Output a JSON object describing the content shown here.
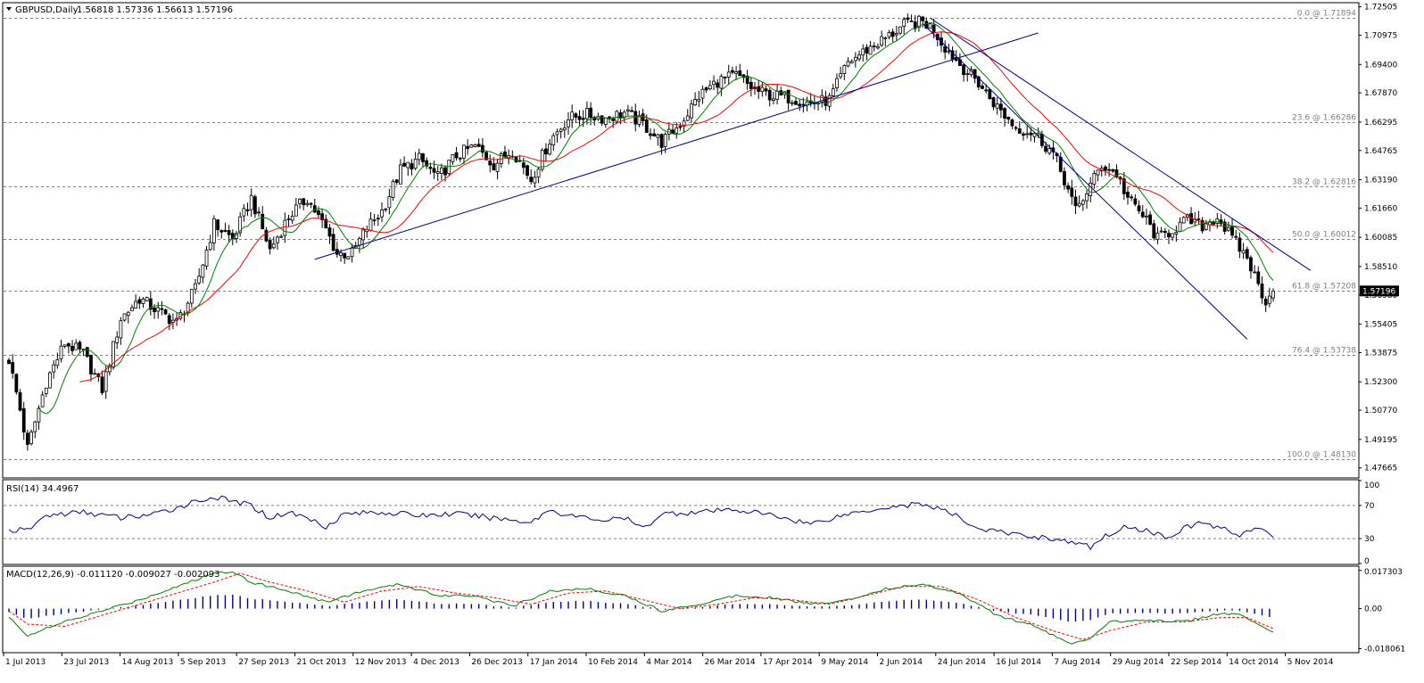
{
  "chart_data": {
    "type": "candlestick",
    "header": {
      "symbol_label": "GBPUSD,Daily",
      "ohlc_text": "1.56818 1.57336 1.56613 1.57196"
    },
    "current_price": "1.57196",
    "price_axis": {
      "ticks": [
        "1.72505",
        "1.70975",
        "1.69400",
        "1.67870",
        "1.66295",
        "1.64765",
        "1.63190",
        "1.61660",
        "1.60085",
        "1.58510",
        "1.56980",
        "1.55405",
        "1.53875",
        "1.52300",
        "1.50770",
        "1.49195",
        "1.47665"
      ],
      "ylim": [
        1.4717,
        1.7268
      ]
    },
    "x_axis": {
      "ticks": [
        "1 Jul 2013",
        "23 Jul 2013",
        "14 Aug 2013",
        "5 Sep 2013",
        "27 Sep 2013",
        "21 Oct 2013",
        "12 Nov 2013",
        "4 Dec 2013",
        "26 Dec 2013",
        "17 Jan 2014",
        "10 Feb 2014",
        "4 Mar 2014",
        "26 Mar 2014",
        "17 Apr 2014",
        "9 May 2014",
        "2 Jun 2014",
        "24 Jun 2014",
        "16 Jul 2014",
        "7 Aug 2014",
        "29 Aug 2014",
        "22 Sep 2014",
        "14 Oct 2014",
        "5 Nov 2014"
      ]
    },
    "fibonacci_levels": [
      {
        "label": "0.0 @ 1.71894",
        "value": 1.71894
      },
      {
        "label": "23.6 @ 1.66286",
        "value": 1.66286
      },
      {
        "label": "38.2 @ 1.62816",
        "value": 1.62816
      },
      {
        "label": "50.0 @ 1.60012",
        "value": 1.60012
      },
      {
        "label": "61.8 @ 1.57208",
        "value": 1.57208
      },
      {
        "label": "76.4 @ 1.53738",
        "value": 1.53738
      },
      {
        "label": "100.0 @ 1.48130",
        "value": 1.4813
      }
    ],
    "price_anchors": [
      [
        0,
        1.535
      ],
      [
        3,
        1.508
      ],
      [
        5,
        1.487
      ],
      [
        10,
        1.523
      ],
      [
        15,
        1.544
      ],
      [
        20,
        1.538
      ],
      [
        25,
        1.519
      ],
      [
        30,
        1.557
      ],
      [
        35,
        1.568
      ],
      [
        40,
        1.561
      ],
      [
        45,
        1.555
      ],
      [
        50,
        1.573
      ],
      [
        55,
        1.608
      ],
      [
        60,
        1.6
      ],
      [
        65,
        1.622
      ],
      [
        70,
        1.594
      ],
      [
        75,
        1.612
      ],
      [
        80,
        1.622
      ],
      [
        85,
        1.605
      ],
      [
        88,
        1.592
      ],
      [
        92,
        1.592
      ],
      [
        96,
        1.606
      ],
      [
        100,
        1.615
      ],
      [
        105,
        1.637
      ],
      [
        110,
        1.643
      ],
      [
        115,
        1.633
      ],
      [
        120,
        1.645
      ],
      [
        125,
        1.65
      ],
      [
        130,
        1.64
      ],
      [
        135,
        1.648
      ],
      [
        140,
        1.632
      ],
      [
        145,
        1.653
      ],
      [
        150,
        1.665
      ],
      [
        155,
        1.667
      ],
      [
        160,
        1.665
      ],
      [
        165,
        1.668
      ],
      [
        170,
        1.662
      ],
      [
        175,
        1.652
      ],
      [
        180,
        1.662
      ],
      [
        185,
        1.677
      ],
      [
        190,
        1.685
      ],
      [
        195,
        1.688
      ],
      [
        200,
        1.68
      ],
      [
        205,
        1.677
      ],
      [
        210,
        1.676
      ],
      [
        215,
        1.673
      ],
      [
        220,
        1.675
      ],
      [
        225,
        1.695
      ],
      [
        230,
        1.702
      ],
      [
        235,
        1.708
      ],
      [
        240,
        1.715
      ],
      [
        245,
        1.717
      ],
      [
        248,
        1.713
      ],
      [
        250,
        1.706
      ],
      [
        255,
        1.694
      ],
      [
        260,
        1.684
      ],
      [
        265,
        1.671
      ],
      [
        270,
        1.66
      ],
      [
        275,
        1.657
      ],
      [
        280,
        1.646
      ],
      [
        283,
        1.632
      ],
      [
        286,
        1.615
      ],
      [
        290,
        1.629
      ],
      [
        293,
        1.64
      ],
      [
        297,
        1.635
      ],
      [
        300,
        1.622
      ],
      [
        305,
        1.61
      ],
      [
        308,
        1.6
      ],
      [
        312,
        1.605
      ],
      [
        316,
        1.61
      ],
      [
        320,
        1.607
      ],
      [
        324,
        1.612
      ],
      [
        328,
        1.6
      ],
      [
        332,
        1.59
      ],
      [
        335,
        1.575
      ],
      [
        337,
        1.567
      ],
      [
        339,
        1.572
      ]
    ],
    "moving_averages": [
      {
        "color": "#ff0000",
        "period": 20
      },
      {
        "color": "#008000",
        "period": 9
      }
    ],
    "trend_lines": [
      {
        "from": [
          82,
          1.589
        ],
        "to": [
          276,
          1.711
        ],
        "color": "#00008b"
      },
      {
        "from": [
          245,
          1.716
        ],
        "to": [
          332,
          1.546
        ],
        "color": "#00008b"
      },
      {
        "from": [
          247,
          1.719
        ],
        "to": [
          349,
          1.583
        ],
        "color": "#00008b"
      }
    ],
    "rsi": {
      "label": "RSI(14) 34.4967",
      "axis_ticks": [
        "100",
        "70",
        "30",
        "0"
      ],
      "levels": [
        70,
        30
      ],
      "line_color": "#00008b",
      "anchors": [
        [
          0,
          40
        ],
        [
          5,
          40
        ],
        [
          10,
          58
        ],
        [
          20,
          62
        ],
        [
          30,
          55
        ],
        [
          40,
          60
        ],
        [
          50,
          75
        ],
        [
          55,
          80
        ],
        [
          60,
          75
        ],
        [
          65,
          70
        ],
        [
          70,
          55
        ],
        [
          75,
          62
        ],
        [
          80,
          55
        ],
        [
          85,
          45
        ],
        [
          90,
          60
        ],
        [
          100,
          62
        ],
        [
          110,
          58
        ],
        [
          120,
          60
        ],
        [
          130,
          55
        ],
        [
          140,
          50
        ],
        [
          145,
          65
        ],
        [
          150,
          58
        ],
        [
          160,
          52
        ],
        [
          165,
          55
        ],
        [
          170,
          42
        ],
        [
          175,
          60
        ],
        [
          185,
          62
        ],
        [
          195,
          65
        ],
        [
          205,
          58
        ],
        [
          215,
          48
        ],
        [
          225,
          60
        ],
        [
          235,
          68
        ],
        [
          245,
          72
        ],
        [
          250,
          65
        ],
        [
          255,
          55
        ],
        [
          260,
          42
        ],
        [
          270,
          35
        ],
        [
          280,
          30
        ],
        [
          290,
          20
        ],
        [
          295,
          36
        ],
        [
          300,
          45
        ],
        [
          305,
          40
        ],
        [
          310,
          32
        ],
        [
          315,
          42
        ],
        [
          320,
          50
        ],
        [
          325,
          42
        ],
        [
          330,
          35
        ],
        [
          334,
          42
        ],
        [
          339,
          34
        ]
      ]
    },
    "macd": {
      "label": "MACD(12,26,9) -0.011120 -0.009027 -0.002093",
      "axis_ticks": [
        "0.017303",
        "0.00",
        "-0.018061"
      ],
      "ylim": [
        -0.0195,
        0.0188
      ],
      "main_color": "#008000",
      "signal_color": "#ff0000",
      "histogram_color": "#00008b",
      "main_anchors": [
        [
          0,
          -0.004
        ],
        [
          5,
          -0.012
        ],
        [
          15,
          -0.006
        ],
        [
          25,
          -0.001
        ],
        [
          35,
          0.004
        ],
        [
          45,
          0.01
        ],
        [
          55,
          0.016
        ],
        [
          60,
          0.017
        ],
        [
          65,
          0.012
        ],
        [
          75,
          0.008
        ],
        [
          85,
          0.003
        ],
        [
          95,
          0.008
        ],
        [
          105,
          0.011
        ],
        [
          115,
          0.006
        ],
        [
          125,
          0.006
        ],
        [
          135,
          0.001
        ],
        [
          145,
          0.008
        ],
        [
          155,
          0.009
        ],
        [
          165,
          0.006
        ],
        [
          175,
          -0.001
        ],
        [
          185,
          0.002
        ],
        [
          195,
          0.006
        ],
        [
          205,
          0.005
        ],
        [
          215,
          0.002
        ],
        [
          225,
          0.004
        ],
        [
          235,
          0.009
        ],
        [
          245,
          0.011
        ],
        [
          255,
          0.007
        ],
        [
          265,
          -0.003
        ],
        [
          275,
          -0.008
        ],
        [
          285,
          -0.016
        ],
        [
          290,
          -0.014
        ],
        [
          295,
          -0.006
        ],
        [
          305,
          -0.005
        ],
        [
          315,
          -0.006
        ],
        [
          325,
          -0.002
        ],
        [
          330,
          -0.003
        ],
        [
          335,
          -0.007
        ],
        [
          339,
          -0.011
        ]
      ],
      "signal_anchors": [
        [
          0,
          -0.001
        ],
        [
          5,
          -0.007
        ],
        [
          15,
          -0.008
        ],
        [
          25,
          -0.003
        ],
        [
          35,
          0.002
        ],
        [
          45,
          0.007
        ],
        [
          55,
          0.012
        ],
        [
          62,
          0.016
        ],
        [
          70,
          0.012
        ],
        [
          80,
          0.008
        ],
        [
          90,
          0.003
        ],
        [
          100,
          0.008
        ],
        [
          110,
          0.01
        ],
        [
          120,
          0.007
        ],
        [
          130,
          0.005
        ],
        [
          140,
          0.002
        ],
        [
          150,
          0.007
        ],
        [
          160,
          0.008
        ],
        [
          170,
          0.004
        ],
        [
          180,
          0.0
        ],
        [
          190,
          0.002
        ],
        [
          200,
          0.005
        ],
        [
          210,
          0.004
        ],
        [
          220,
          0.002
        ],
        [
          230,
          0.006
        ],
        [
          240,
          0.01
        ],
        [
          250,
          0.01
        ],
        [
          260,
          0.004
        ],
        [
          270,
          -0.004
        ],
        [
          280,
          -0.01
        ],
        [
          288,
          -0.014
        ],
        [
          295,
          -0.01
        ],
        [
          305,
          -0.006
        ],
        [
          315,
          -0.006
        ],
        [
          325,
          -0.004
        ],
        [
          332,
          -0.004
        ],
        [
          339,
          -0.009
        ]
      ]
    }
  }
}
